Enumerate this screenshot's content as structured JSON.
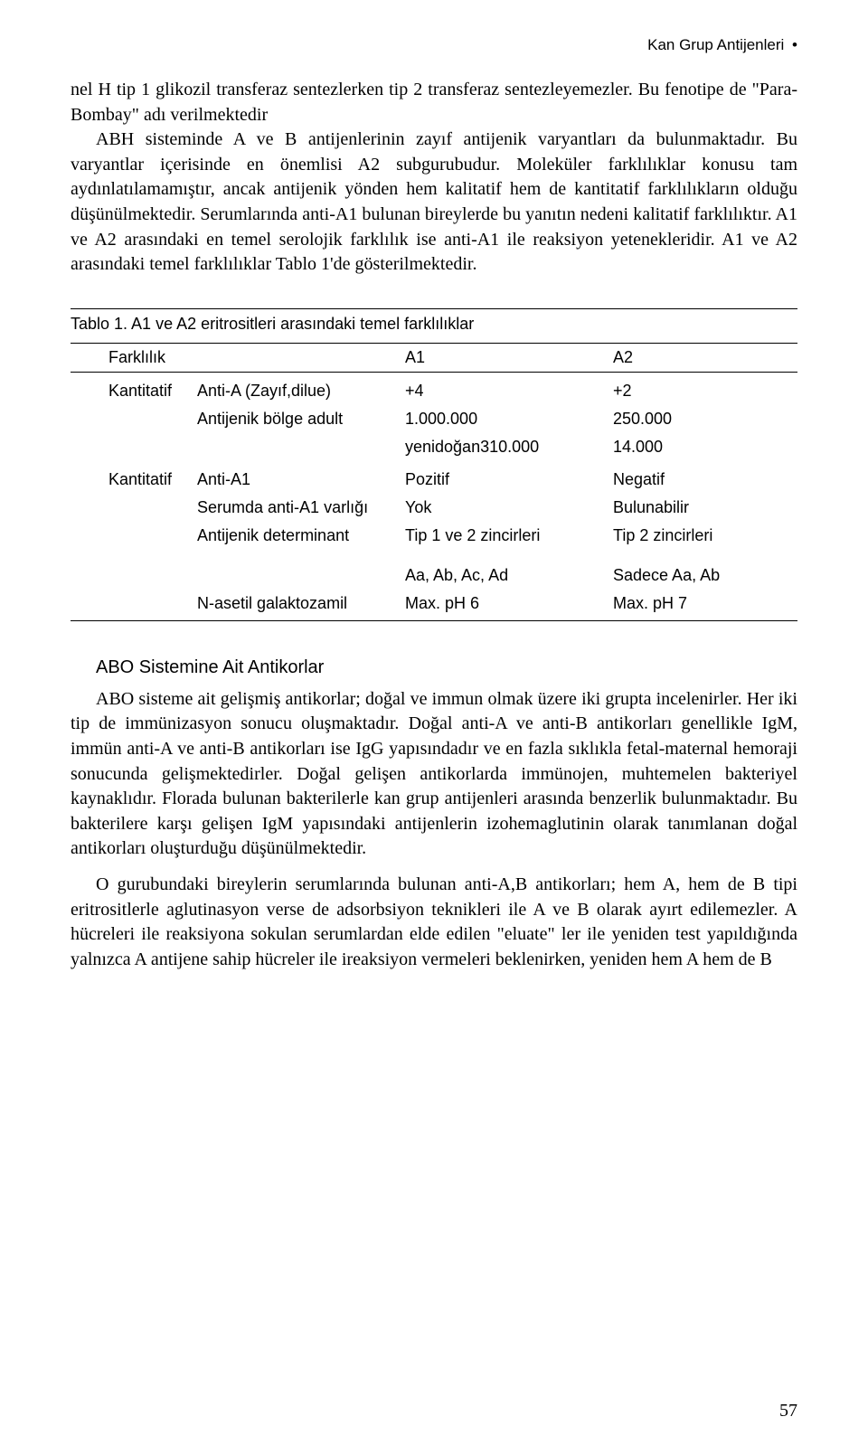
{
  "header": {
    "title": "Kan Grup Antijenleri",
    "bullet": "•"
  },
  "intro_paragraph": "nel H tip 1 glikozil transferaz sentezlerken tip 2 transferaz sentezleyemezler. Bu fenotipe de \"Para-Bombay\" adı verilmektedir",
  "intro_paragraph2": "ABH sisteminde A ve B antijenlerinin zayıf antijenik varyantları da bulunmaktadır. Bu varyantlar içerisinde en önemlisi A2 subgurubudur. Moleküler farklılıklar konusu tam aydınlatılamamıştır, ancak antijenik yönden hem kalitatif hem de kantitatif farklılıkların olduğu düşünülmektedir. Serumlarında anti-A1 bulunan bireylerde bu yanıtın nedeni kalitatif farklılıktır. A1 ve A2 arasındaki en temel serolojik farklılık ise anti-A1 ile reaksiyon yetenekleridir. A1 ve A2 arasındaki temel farklılıklar Tablo 1'de gösterilmektedir.",
  "table": {
    "title": "Tablo 1. A1 ve A2 eritrositleri arasındaki temel farklılıklar",
    "columns": [
      "Farklılık",
      "",
      "A1",
      "A2"
    ],
    "groups": [
      {
        "rows": [
          [
            "Kantitatif",
            "Anti-A (Zayıf,dilue)",
            "+4",
            "+2"
          ],
          [
            "",
            "Antijenik bölge adult",
            "1.000.000",
            "250.000"
          ],
          [
            "",
            "",
            "yenidoğan310.000",
            "14.000"
          ]
        ]
      },
      {
        "rows": [
          [
            "Kantitatif",
            "Anti-A1",
            "Pozitif",
            "Negatif"
          ],
          [
            "",
            "Serumda anti-A1 varlığı",
            "Yok",
            "Bulunabilir"
          ],
          [
            "",
            "Antijenik determinant",
            "Tip 1 ve 2 zincirleri",
            "Tip 2 zincirleri"
          ]
        ]
      },
      {
        "rows": [
          [
            "",
            "",
            "Aa, Ab, Ac, Ad",
            "Sadece  Aa, Ab"
          ],
          [
            "",
            "N-asetil galaktozamil",
            "Max. pH 6",
            "Max. pH 7"
          ]
        ]
      }
    ]
  },
  "section": {
    "title": "ABO Sistemine Ait Antikorlar",
    "p1": "ABO sisteme ait gelişmiş antikorlar; doğal ve immun olmak üzere iki grupta incelenirler. Her iki tip de immünizasyon sonucu oluşmaktadır. Doğal anti-A ve anti-B antikorları genellikle IgM, immün anti-A ve anti-B antikorları ise IgG yapısındadır ve en fazla sıklıkla fetal-maternal hemoraji sonucunda gelişmektedirler. Doğal gelişen antikorlarda immünojen, muhtemelen bakteriyel kaynaklıdır. Florada bulunan bakterilerle kan grup antijenleri arasında benzerlik bulunmaktadır. Bu bakterilere karşı gelişen IgM yapısındaki antijenlerin izohemaglutinin olarak tanımlanan doğal antikorları oluşturduğu düşünülmektedir.",
    "p2": "O gurubundaki bireylerin serumlarında bulunan anti-A,B antikorları; hem A, hem de B tipi eritrositlerle aglutinasyon verse de adsorbsiyon teknikleri ile A ve B olarak ayırt edilemezler. A hücreleri ile reaksiyona sokulan serumlardan elde edilen \"eluate\" ler ile yeniden test yapıldığında yalnızca A antijene sahip hücreler ile ireaksiyon vermeleri beklenirken, yeniden hem A hem de B"
  },
  "page_number": "57"
}
